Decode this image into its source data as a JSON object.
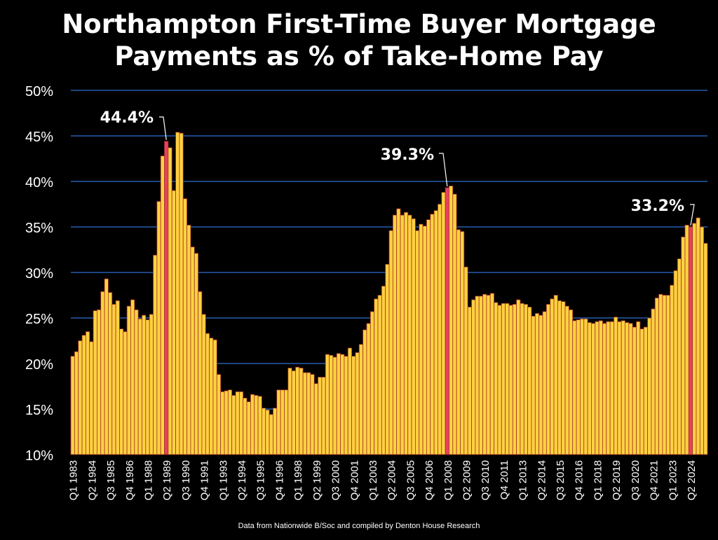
{
  "chart_data": {
    "type": "bar",
    "title_line1": "Northampton First-Time Buyer Mortgage",
    "title_line2": "Payments as % of Take-Home Pay",
    "source": "Data from Nationwide B/Soc and compiled by Denton House Research",
    "ylim": [
      10,
      50
    ],
    "yticks": [
      "10%",
      "15%",
      "20%",
      "25%",
      "30%",
      "35%",
      "40%",
      "45%",
      "50%"
    ],
    "xlabels": [
      "Q1 1983",
      "Q2 1984",
      "Q3 1985",
      "Q4 1986",
      "Q1 1988",
      "Q2 1989",
      "Q3 1990",
      "Q4 1991",
      "Q1 1993",
      "Q2 1994",
      "Q3 1995",
      "Q4 1996",
      "Q1 1998",
      "Q2 1999",
      "Q3 2000",
      "Q4 2001",
      "Q1 2003",
      "Q2 2004",
      "Q3 2005",
      "Q4 2006",
      "Q1 2008",
      "Q2 2009",
      "Q3 2010",
      "Q4 2011",
      "Q1 2013",
      "Q2 2014",
      "Q3 2015",
      "Q4 2016",
      "Q1 2018",
      "Q2 2019",
      "Q3 2020",
      "Q4 2021",
      "Q1 2023",
      "Q2 2024"
    ],
    "grid": true,
    "bar_color": "#FFD23F",
    "highlight_color": "#E8415F",
    "annotations": [
      {
        "label": "44.4%",
        "index": 25
      },
      {
        "label": "39.3%",
        "index": 100
      },
      {
        "label": "33.2%",
        "index": 165
      }
    ],
    "values": [
      20.8,
      21.3,
      22.5,
      23.1,
      23.5,
      22.4,
      25.8,
      25.9,
      27.9,
      29.3,
      27.8,
      26.5,
      26.9,
      23.8,
      23.5,
      26.3,
      27.0,
      25.9,
      24.9,
      25.3,
      24.8,
      25.4,
      31.9,
      37.8,
      42.8,
      44.4,
      43.7,
      39.0,
      45.4,
      45.3,
      38.1,
      35.2,
      32.8,
      32.1,
      27.9,
      25.4,
      23.3,
      22.8,
      22.6,
      18.8,
      16.9,
      17.0,
      17.1,
      16.5,
      16.9,
      16.9,
      16.2,
      15.8,
      16.6,
      16.5,
      16.4,
      15.1,
      14.9,
      14.4,
      15.1,
      17.1,
      17.1,
      17.1,
      19.5,
      19.2,
      19.6,
      19.5,
      19.0,
      19.0,
      18.8,
      17.8,
      18.5,
      18.5,
      21.0,
      20.9,
      20.7,
      21.1,
      21.0,
      20.8,
      21.7,
      20.8,
      21.2,
      22.1,
      23.7,
      24.4,
      25.7,
      27.1,
      27.5,
      28.5,
      30.9,
      34.6,
      36.3,
      37.0,
      36.3,
      36.6,
      36.3,
      35.9,
      34.6,
      35.3,
      35.1,
      35.8,
      36.4,
      36.8,
      37.5,
      38.8,
      39.3,
      39.5,
      38.6,
      34.7,
      34.5,
      30.6,
      26.2,
      27.0,
      27.4,
      27.4,
      27.6,
      27.5,
      27.7,
      26.7,
      26.4,
      26.6,
      26.6,
      26.4,
      26.5,
      27.0,
      26.6,
      26.5,
      26.2,
      25.2,
      25.5,
      25.3,
      25.7,
      26.5,
      27.1,
      27.5,
      26.9,
      26.8,
      26.3,
      25.9,
      24.7,
      24.8,
      24.9,
      24.9,
      24.5,
      24.4,
      24.6,
      24.7,
      24.4,
      24.6,
      24.6,
      25.1,
      24.6,
      24.7,
      24.5,
      24.4,
      24.0,
      24.6,
      23.8,
      24.0,
      25.0,
      26.0,
      27.2,
      27.6,
      27.5,
      27.5,
      28.6,
      30.2,
      31.5,
      33.9,
      35.2,
      35.0,
      35.4,
      36.0,
      35.0,
      33.2
    ]
  }
}
